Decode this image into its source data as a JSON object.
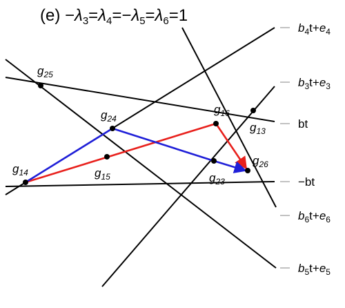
{
  "title": {
    "prefix": "(e) −",
    "parts": [
      {
        "t": "λ",
        "s": "3"
      },
      {
        "t": "=λ",
        "s": "4"
      },
      {
        "t": "=−λ",
        "s": "5"
      },
      {
        "t": "=λ",
        "s": "6"
      },
      {
        "t": "=1",
        "s": ""
      }
    ]
  },
  "line_labels": [
    {
      "id": "b4t+e4",
      "parts": [
        {
          "t": "b",
          "i": true
        },
        {
          "t": "4",
          "sub": true
        },
        {
          "t": "t+"
        },
        {
          "t": "e",
          "i": true
        },
        {
          "t": "4",
          "sub": true
        }
      ]
    },
    {
      "id": "b3t+e3",
      "parts": [
        {
          "t": "b",
          "i": true
        },
        {
          "t": "3",
          "sub": true
        },
        {
          "t": "t+"
        },
        {
          "t": "e",
          "i": true
        },
        {
          "t": "3",
          "sub": true
        }
      ]
    },
    {
      "id": "bt",
      "parts": [
        {
          "t": "bt"
        }
      ]
    },
    {
      "id": "-bt",
      "parts": [
        {
          "t": "−bt"
        }
      ]
    },
    {
      "id": "b6t+e6",
      "parts": [
        {
          "t": "b",
          "i": true
        },
        {
          "t": "6",
          "sub": true
        },
        {
          "t": "t+"
        },
        {
          "t": "e",
          "i": true
        },
        {
          "t": "6",
          "sub": true
        }
      ]
    },
    {
      "id": "b5t+e5",
      "parts": [
        {
          "t": "b",
          "i": true
        },
        {
          "t": "5",
          "sub": true
        },
        {
          "t": "t+"
        },
        {
          "t": "e",
          "i": true
        },
        {
          "t": "5",
          "sub": true
        }
      ]
    }
  ],
  "points": [
    {
      "id": "g25",
      "base": "g",
      "sub": "25"
    },
    {
      "id": "g24",
      "base": "g",
      "sub": "24"
    },
    {
      "id": "g16",
      "base": "g",
      "sub": "16"
    },
    {
      "id": "g13",
      "base": "g",
      "sub": "13"
    },
    {
      "id": "g15",
      "base": "g",
      "sub": "15"
    },
    {
      "id": "g14",
      "base": "g",
      "sub": "14"
    },
    {
      "id": "g23",
      "base": "g",
      "sub": "23"
    },
    {
      "id": "g26",
      "base": "g",
      "sub": "26"
    }
  ],
  "colors": {
    "lines": "#000000",
    "red_path": "#e8201c",
    "blue_path": "#1f1fd8",
    "points": "#000000"
  },
  "paths": {
    "red": [
      "g14",
      "g16",
      "g26"
    ],
    "blue": [
      "g14",
      "g24",
      "g23",
      "g26"
    ]
  }
}
